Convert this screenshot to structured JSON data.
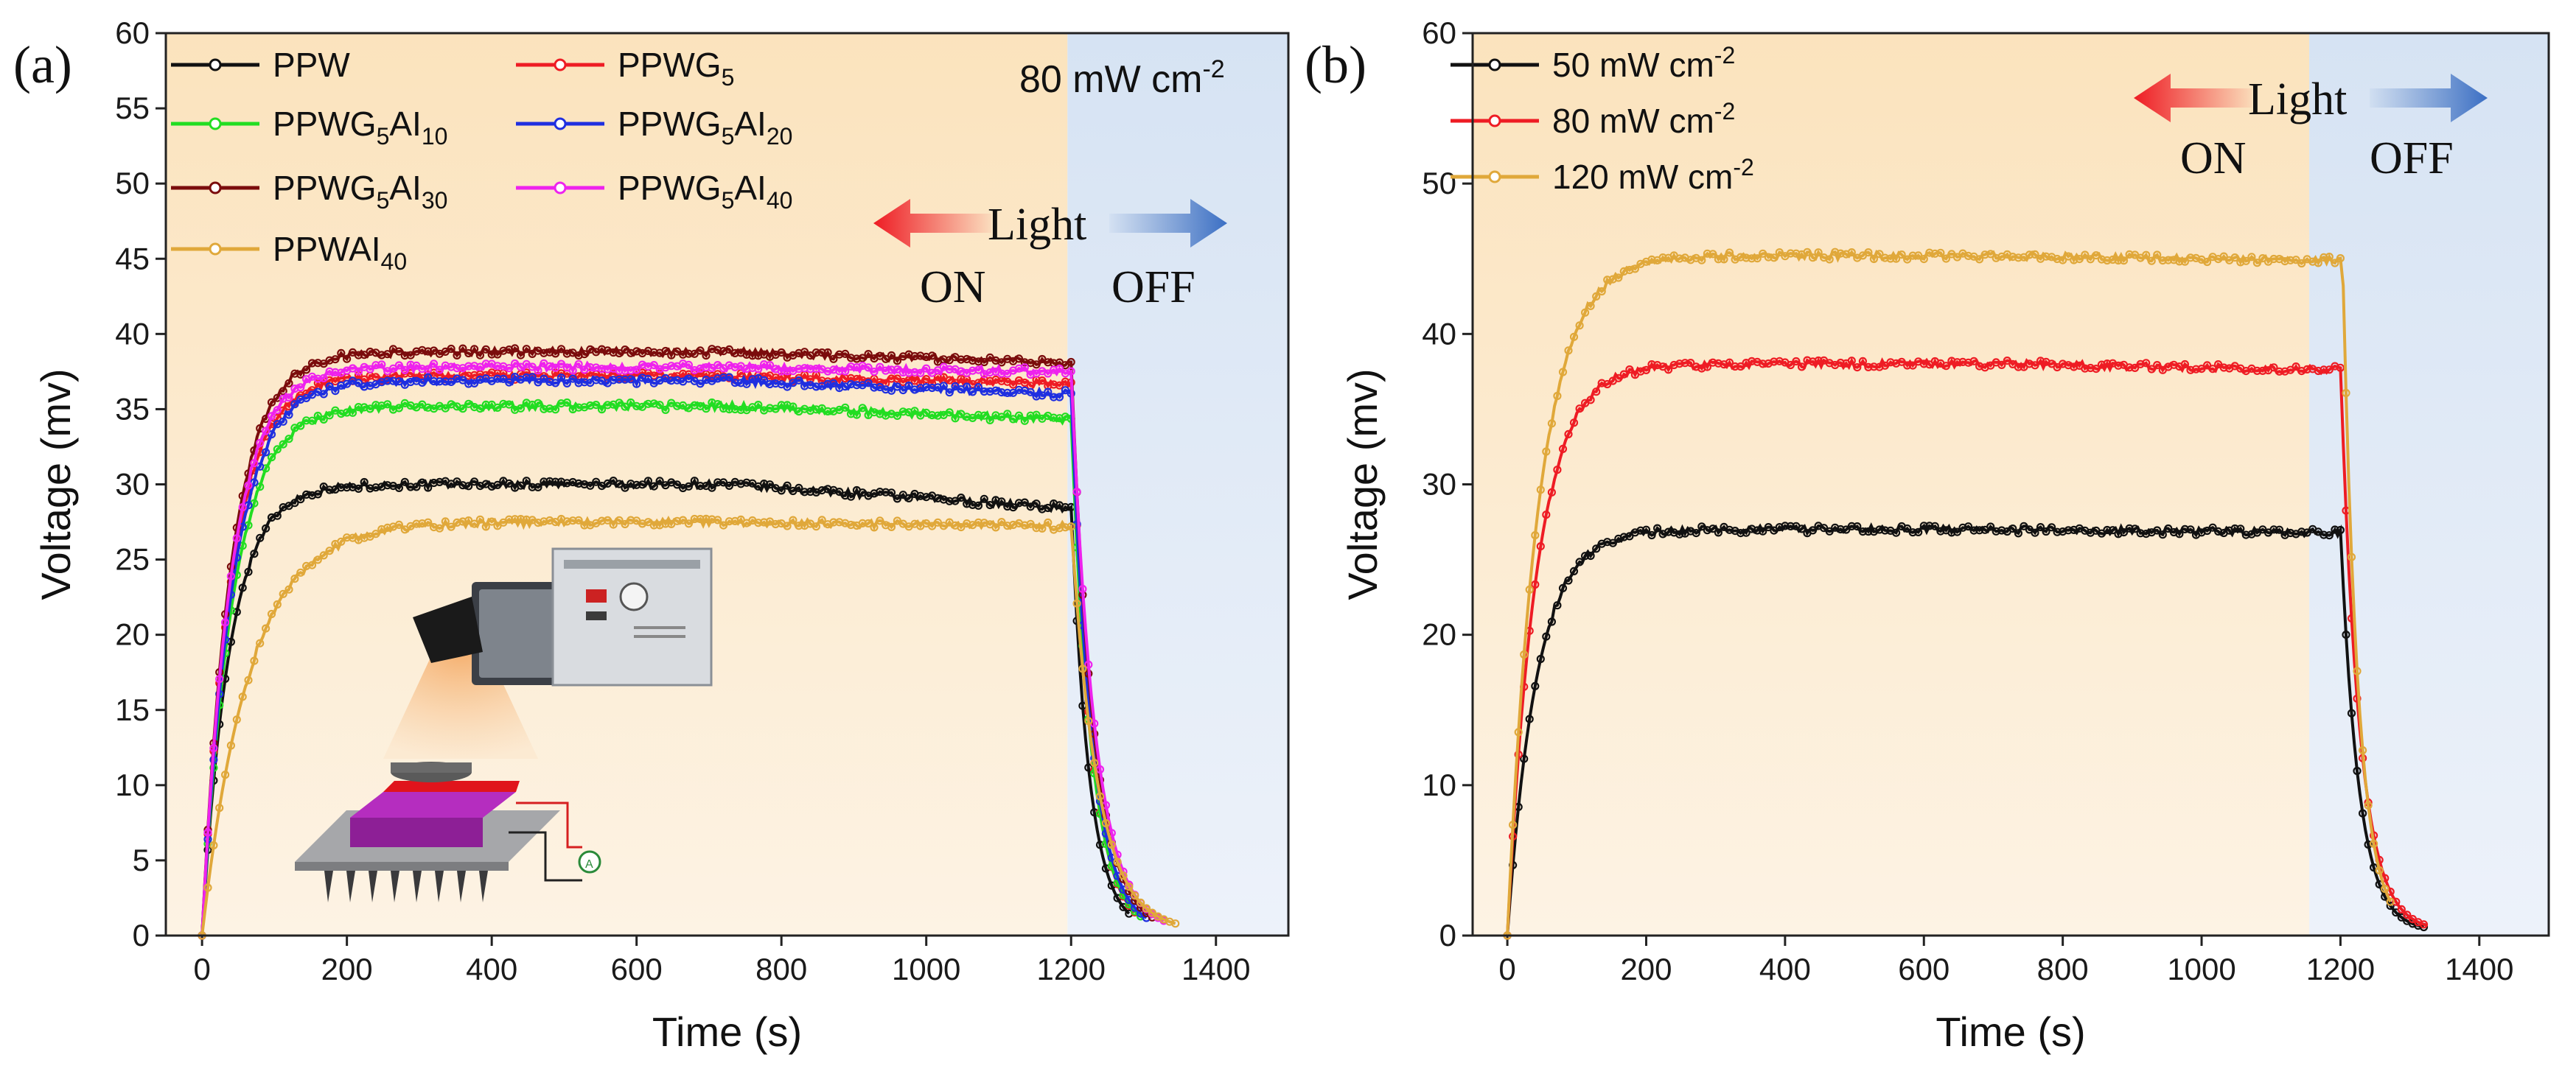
{
  "colors": {
    "on_region": "#fbe7c6",
    "off_region": "#dbe6f4",
    "arrow_on": "#ee1c24",
    "arrow_off": "#4a78c2"
  },
  "chart_data": [
    {
      "panel_label": "(a)",
      "type": "line",
      "xlabel": "Time (s)",
      "ylabel": "Voltage (mv)",
      "xlim": [
        -50,
        1500
      ],
      "ylim": [
        0,
        60
      ],
      "xticks": [
        "0",
        "200",
        "400",
        "600",
        "800",
        "1000",
        "1200",
        "1400"
      ],
      "yticks": [
        "0",
        "5",
        "10",
        "15",
        "20",
        "25",
        "30",
        "35",
        "40",
        "45",
        "50",
        "55",
        "60"
      ],
      "light_off_at": 1195,
      "annotation": {
        "intensity": "80 mW cm",
        "intensity_sup": "-2",
        "light": "Light",
        "on": "ON",
        "off": "OFF"
      },
      "legend_placement": "top-left",
      "series": [
        {
          "name": "PPW",
          "name_sub": "",
          "name_tail": "",
          "color": "#111111",
          "plateau": 30.0,
          "tau": 38,
          "end_value": 28.4,
          "drop_at": 1200,
          "decay_tau": 25,
          "x_end": 1280
        },
        {
          "name": "PPWG",
          "name_sub": "5",
          "name_tail": "",
          "color": "#ee1c24",
          "plateau": 37.2,
          "tau": 40,
          "end_value": 36.7,
          "drop_at": 1200,
          "decay_tau": 26,
          "x_end": 1290
        },
        {
          "name": "PPWG",
          "name_sub": "5",
          "name_tail": "AI",
          "name_tail_sub": "10",
          "color": "#22dd22",
          "plateau": 35.2,
          "tau": 42,
          "end_value": 34.3,
          "drop_at": 1200,
          "decay_tau": 27,
          "x_end": 1300
        },
        {
          "name": "PPWG",
          "name_sub": "5",
          "name_tail": "AI",
          "name_tail_sub": "20",
          "color": "#1f2fe0",
          "plateau": 36.9,
          "tau": 42,
          "end_value": 36.0,
          "drop_at": 1200,
          "decay_tau": 28,
          "x_end": 1305
        },
        {
          "name": "PPWG",
          "name_sub": "5",
          "name_tail": "AI",
          "name_tail_sub": "30",
          "color": "#7b0c0c",
          "plateau": 38.8,
          "tau": 40,
          "end_value": 38.1,
          "drop_at": 1200,
          "decay_tau": 30,
          "x_end": 1315
        },
        {
          "name": "PPWG",
          "name_sub": "5",
          "name_tail": "AI",
          "name_tail_sub": "40",
          "color": "#ee22ee",
          "plateau": 37.8,
          "tau": 40,
          "end_value": 37.5,
          "drop_at": 1200,
          "decay_tau": 32,
          "x_end": 1330
        },
        {
          "name": "PPWAI",
          "name_sub": "40",
          "name_tail": "",
          "color": "#e0a83a",
          "plateau": 27.5,
          "tau": 65,
          "end_value": 27.2,
          "drop_at": 1200,
          "decay_tau": 36,
          "x_end": 1345
        }
      ]
    },
    {
      "panel_label": "(b)",
      "type": "line",
      "xlabel": "Time (s)",
      "ylabel": "Voltage (mv)",
      "xlim": [
        -50,
        1500
      ],
      "ylim": [
        0,
        60
      ],
      "xticks": [
        "0",
        "200",
        "400",
        "600",
        "800",
        "1000",
        "1200",
        "1400"
      ],
      "yticks": [
        "0",
        "10",
        "20",
        "30",
        "40",
        "50",
        "60"
      ],
      "light_off_at": 1155,
      "annotation": {
        "light": "Light",
        "on": "ON",
        "off": "OFF"
      },
      "legend_placement": "top-left",
      "series": [
        {
          "name": "50 mW cm",
          "name_sup": "-2",
          "color": "#111111",
          "plateau": 27.0,
          "tau": 42,
          "end_value": 26.8,
          "drop_at": 1200,
          "decay_tau": 26,
          "x_end": 1320
        },
        {
          "name": "80 mW cm",
          "name_sup": "-2",
          "color": "#ee1c24",
          "plateau": 38.0,
          "tau": 42,
          "end_value": 37.6,
          "drop_at": 1200,
          "decay_tau": 27,
          "x_end": 1325
        },
        {
          "name": "120 mW cm",
          "name_sup": "-2",
          "color": "#e0a83a",
          "plateau": 45.2,
          "tau": 45,
          "end_value": 44.9,
          "drop_at": 1203,
          "decay_tau": 22,
          "x_end": 1275
        }
      ]
    }
  ]
}
